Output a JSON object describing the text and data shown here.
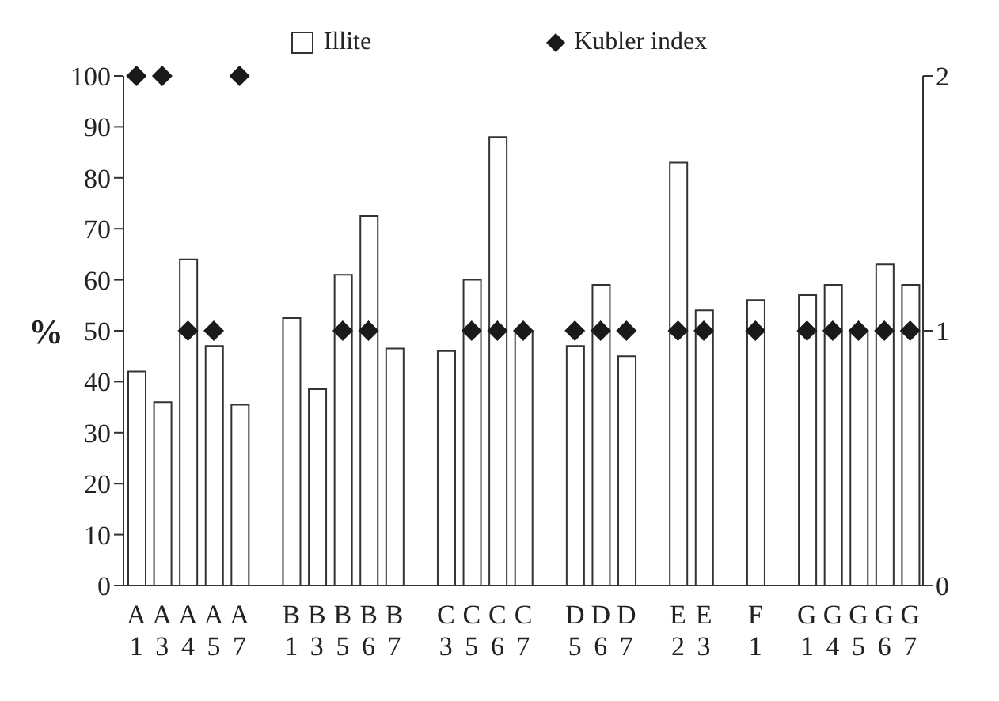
{
  "chart_data": {
    "type": "bar",
    "ylabel": "%",
    "categories": [
      "A\n1",
      "A\n3",
      "A\n4",
      "A\n5",
      "A\n7",
      null,
      "B\n1",
      "B\n3",
      "B\n5",
      "B\n6",
      "B\n7",
      null,
      "C\n3",
      "C\n5",
      "C\n6",
      "C\n7",
      null,
      "D\n5",
      "D\n6",
      "D\n7",
      null,
      "E\n2",
      "E\n3",
      null,
      "F\n1",
      null,
      "G\n1",
      "G\n4",
      "G\n5",
      "G\n6",
      "G\n7"
    ],
    "series": [
      {
        "name": "Illite",
        "color": "#ffffff",
        "values": [
          42,
          36,
          64,
          47,
          35.5,
          null,
          52.5,
          38.5,
          61,
          72.5,
          46.5,
          null,
          46,
          60,
          88,
          50,
          null,
          47,
          59,
          45,
          null,
          83,
          54,
          null,
          56,
          null,
          57,
          59,
          50,
          63,
          59
        ]
      },
      {
        "name": "Kubler index",
        "type": "scatter",
        "axis": "y2",
        "color": "#1a1a1a",
        "marker": "diamond",
        "values": [
          2,
          2,
          1,
          1,
          2,
          null,
          null,
          null,
          1,
          1,
          null,
          null,
          null,
          1,
          1,
          1,
          null,
          1,
          1,
          1,
          null,
          1,
          1,
          null,
          1,
          null,
          1,
          1,
          1,
          1,
          1
        ]
      }
    ],
    "ylim": [
      0,
      100
    ],
    "yticks": [
      0,
      10,
      20,
      30,
      40,
      50,
      60,
      70,
      80,
      90,
      100
    ],
    "y2lim": [
      0,
      2
    ],
    "y2ticks": [
      0,
      1,
      2
    ],
    "legend": "top"
  }
}
